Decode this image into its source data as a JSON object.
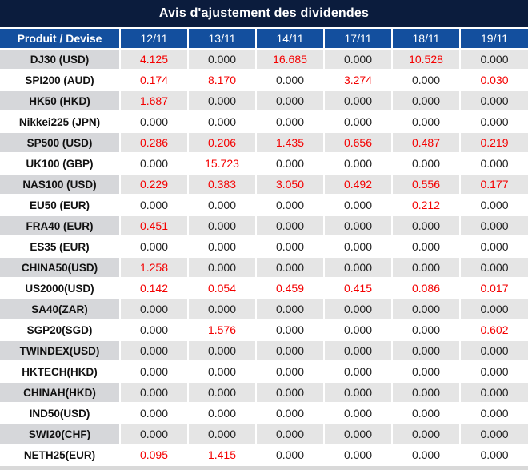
{
  "title": "Avis d'ajustement des dividendes",
  "colors": {
    "title_bg": "#0b1c3d",
    "header_bg": "#134f9e",
    "red": "#f40000",
    "zero_color": "#1f1f1f",
    "stripe_product_bg": "#d6d7da",
    "stripe_value_bg": "#e5e5e5",
    "strip_bg": "#d9d9d9"
  },
  "table": {
    "product_header": "Produit / Devise",
    "date_headers": [
      "12/11",
      "13/11",
      "14/11",
      "17/11",
      "18/11",
      "19/11"
    ],
    "rows": [
      {
        "product": "DJ30 (USD)",
        "values": [
          "4.125",
          "0.000",
          "16.685",
          "0.000",
          "10.528",
          "0.000"
        ]
      },
      {
        "product": "SPI200 (AUD)",
        "values": [
          "0.174",
          "8.170",
          "0.000",
          "3.274",
          "0.000",
          "0.030"
        ]
      },
      {
        "product": "HK50 (HKD)",
        "values": [
          "1.687",
          "0.000",
          "0.000",
          "0.000",
          "0.000",
          "0.000"
        ]
      },
      {
        "product": "Nikkei225 (JPN)",
        "values": [
          "0.000",
          "0.000",
          "0.000",
          "0.000",
          "0.000",
          "0.000"
        ]
      },
      {
        "product": "SP500 (USD)",
        "values": [
          "0.286",
          "0.206",
          "1.435",
          "0.656",
          "0.487",
          "0.219"
        ]
      },
      {
        "product": "UK100 (GBP)",
        "values": [
          "0.000",
          "15.723",
          "0.000",
          "0.000",
          "0.000",
          "0.000"
        ]
      },
      {
        "product": "NAS100 (USD)",
        "values": [
          "0.229",
          "0.383",
          "3.050",
          "0.492",
          "0.556",
          "0.177"
        ]
      },
      {
        "product": "EU50 (EUR)",
        "values": [
          "0.000",
          "0.000",
          "0.000",
          "0.000",
          "0.212",
          "0.000"
        ]
      },
      {
        "product": "FRA40 (EUR)",
        "values": [
          "0.451",
          "0.000",
          "0.000",
          "0.000",
          "0.000",
          "0.000"
        ]
      },
      {
        "product": "ES35 (EUR)",
        "values": [
          "0.000",
          "0.000",
          "0.000",
          "0.000",
          "0.000",
          "0.000"
        ]
      },
      {
        "product": "CHINA50(USD)",
        "values": [
          "1.258",
          "0.000",
          "0.000",
          "0.000",
          "0.000",
          "0.000"
        ]
      },
      {
        "product": "US2000(USD)",
        "values": [
          "0.142",
          "0.054",
          "0.459",
          "0.415",
          "0.086",
          "0.017"
        ]
      },
      {
        "product": "SA40(ZAR)",
        "values": [
          "0.000",
          "0.000",
          "0.000",
          "0.000",
          "0.000",
          "0.000"
        ]
      },
      {
        "product": "SGP20(SGD)",
        "values": [
          "0.000",
          "1.576",
          "0.000",
          "0.000",
          "0.000",
          "0.602"
        ]
      },
      {
        "product": "TWINDEX(USD)",
        "values": [
          "0.000",
          "0.000",
          "0.000",
          "0.000",
          "0.000",
          "0.000"
        ]
      },
      {
        "product": "HKTECH(HKD)",
        "values": [
          "0.000",
          "0.000",
          "0.000",
          "0.000",
          "0.000",
          "0.000"
        ]
      },
      {
        "product": "CHINAH(HKD)",
        "values": [
          "0.000",
          "0.000",
          "0.000",
          "0.000",
          "0.000",
          "0.000"
        ]
      },
      {
        "product": "IND50(USD)",
        "values": [
          "0.000",
          "0.000",
          "0.000",
          "0.000",
          "0.000",
          "0.000"
        ]
      },
      {
        "product": "SWI20(CHF)",
        "values": [
          "0.000",
          "0.000",
          "0.000",
          "0.000",
          "0.000",
          "0.000"
        ]
      },
      {
        "product": "NETH25(EUR)",
        "values": [
          "0.095",
          "1.415",
          "0.000",
          "0.000",
          "0.000",
          "0.000"
        ]
      }
    ]
  }
}
